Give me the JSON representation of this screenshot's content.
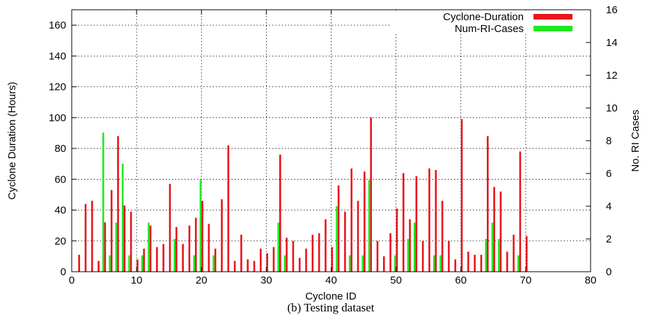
{
  "chart_data": {
    "type": "bar",
    "caption": "(b) Testing dataset",
    "xlabel": "Cyclone ID",
    "ylabel": "Cyclone Duration (Hours)",
    "y2label": "No. RI Cases",
    "xlim": [
      0,
      80
    ],
    "ylim": [
      0,
      170
    ],
    "y2lim": [
      0,
      16
    ],
    "xticks": [
      0,
      10,
      20,
      30,
      40,
      50,
      60,
      70,
      80
    ],
    "yticks": [
      0,
      20,
      40,
      60,
      80,
      100,
      120,
      140,
      160
    ],
    "y2ticks": [
      0,
      2,
      4,
      6,
      8,
      10,
      12,
      14,
      16
    ],
    "grid": true,
    "legend_position": "top-right",
    "series": [
      {
        "name": "Cyclone-Duration",
        "axis": "left",
        "color": "#e8141a",
        "x": [
          1,
          2,
          3,
          4,
          5,
          6,
          7,
          8,
          9,
          10,
          11,
          12,
          13,
          14,
          15,
          16,
          17,
          18,
          19,
          20,
          21,
          22,
          23,
          24,
          25,
          26,
          27,
          28,
          29,
          30,
          31,
          32,
          33,
          34,
          35,
          36,
          37,
          38,
          39,
          40,
          41,
          42,
          43,
          44,
          45,
          46,
          47,
          48,
          49,
          50,
          51,
          52,
          53,
          54,
          55,
          56,
          57,
          58,
          59,
          60,
          61,
          62,
          63,
          64,
          65,
          66,
          67,
          68,
          69,
          70
        ],
        "values": [
          11,
          44,
          46,
          7,
          32,
          53,
          88,
          43,
          39,
          8,
          15,
          30,
          16,
          18,
          57,
          29,
          18,
          30,
          35,
          46,
          31,
          15,
          47,
          82,
          7,
          24,
          8,
          7,
          15,
          12,
          16,
          76,
          22,
          20,
          9,
          15,
          24,
          25,
          34,
          16,
          56,
          39,
          67,
          46,
          65,
          100,
          20,
          10,
          25,
          41,
          64,
          34,
          62,
          20,
          67,
          66,
          46,
          20,
          8,
          99,
          13,
          11,
          11,
          88,
          55,
          52,
          13,
          24,
          78,
          23
        ]
      },
      {
        "name": "Num-RI-Cases",
        "axis": "right",
        "color": "#22e622",
        "x": [
          5,
          6,
          7,
          8,
          9,
          11,
          12,
          16,
          19,
          20,
          22,
          32,
          33,
          41,
          43,
          45,
          46,
          50,
          52,
          53,
          56,
          57,
          64,
          65,
          66,
          69
        ],
        "values": [
          8.5,
          1,
          3,
          6.6,
          1,
          1,
          3,
          2,
          1,
          5.6,
          1,
          3,
          1,
          4,
          1,
          1,
          5.6,
          1,
          2,
          3,
          1,
          1,
          2,
          3,
          2,
          1
        ]
      }
    ]
  }
}
